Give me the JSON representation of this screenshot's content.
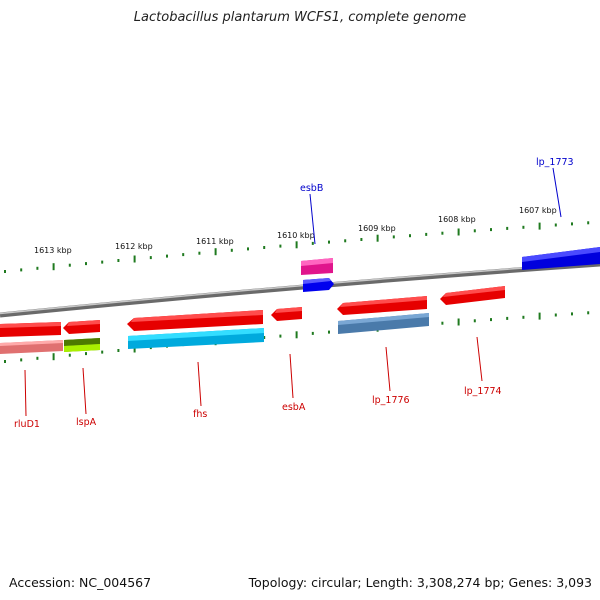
{
  "title": "Lactobacillus plantarum WCFS1, complete genome",
  "footer": {
    "accession": "Accession: NC_004567",
    "summary": "Topology: circular; Length: 3,308,274 bp; Genes: 3,093"
  },
  "colors": {
    "backbone": "#8a8a8a",
    "tick": "#1f7a1f",
    "reverse_gene": "#e60000",
    "forward_label": "#0000cc",
    "reverse_label": "#cc0000"
  },
  "scale_labels": [
    "1613 kbp",
    "1612 kbp",
    "1611 kbp",
    "1610 kbp",
    "1609 kbp",
    "1608 kbp",
    "1607 kbp"
  ],
  "labels": {
    "esbB": "esbB",
    "lp_1773": "lp_1773",
    "rluD1": "rluD1",
    "lspA": "lspA",
    "fhs": "fhs",
    "esbA": "esbA",
    "lp_1776": "lp_1776",
    "lp_1774": "lp_1774"
  }
}
